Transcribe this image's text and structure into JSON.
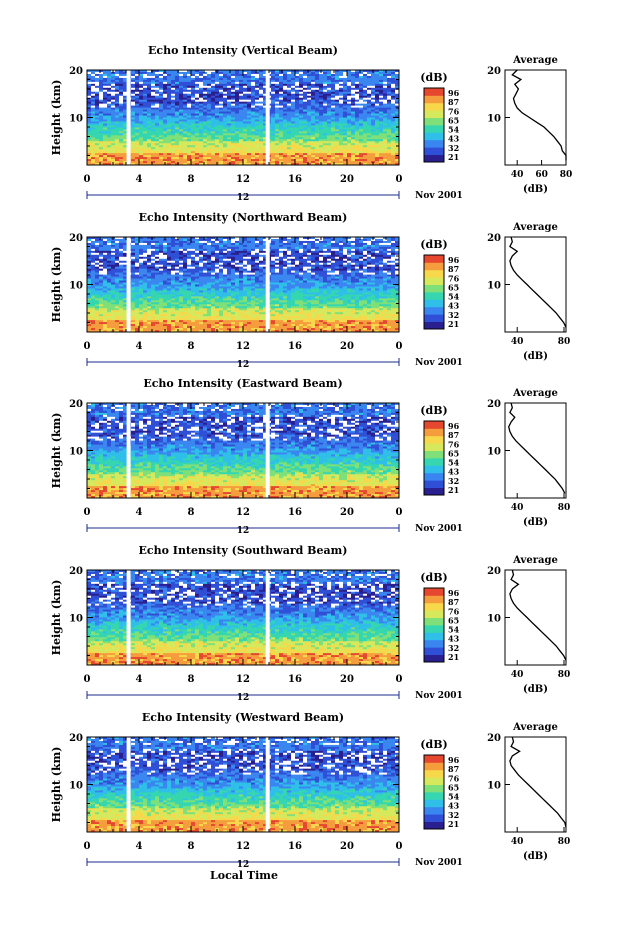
{
  "colors": {
    "colorbar": [
      "#2a1f8f",
      "#2f4fd6",
      "#3a86f0",
      "#2fbfe8",
      "#35d6b0",
      "#7fe07a",
      "#d6e85c",
      "#f7d84a",
      "#f59c3c",
      "#e5472f"
    ],
    "line": "#000000",
    "gap": "#ffffff"
  },
  "shared": {
    "xticks": [
      "0",
      "4",
      "8",
      "12",
      "16",
      "20",
      "0"
    ],
    "date_label": "12",
    "month_label": "Nov 2001",
    "colorbar_unit": "(dB)",
    "colorbar_ticks": [
      "96",
      "87",
      "76",
      "65",
      "54",
      "43",
      "32",
      "21"
    ],
    "yticks": [
      "20",
      "10"
    ],
    "ylabel": "Height (km)",
    "avg_title": "Average",
    "avg_xticks": [
      "40",
      "60",
      "80"
    ],
    "avg_xlabel": "(dB)",
    "avg_yticks": [
      "20",
      "10"
    ],
    "xlabel_bottom": "Local Time"
  },
  "chart_data": [
    {
      "type": "heatmap",
      "title": "Echo Intensity (Vertical Beam)",
      "x": "Local Time (h)",
      "xlim": [
        0,
        24
      ],
      "ylim": [
        0,
        20
      ],
      "data_gaps_hours": [
        3.2,
        13.9
      ],
      "clim_dB": [
        21,
        96
      ],
      "avg_profile": {
        "xlim": [
          30,
          80
        ],
        "xticks": [
          40,
          60,
          80
        ],
        "height_km": [
          1,
          2,
          3,
          4,
          5,
          6,
          7,
          8,
          9,
          10,
          11,
          12,
          13,
          14,
          15,
          16,
          17,
          18,
          19,
          20
        ],
        "dB": [
          82,
          80,
          77,
          76,
          73,
          70,
          66,
          62,
          56,
          50,
          44,
          40,
          38,
          37,
          39,
          41,
          38,
          43,
          36,
          40
        ]
      }
    },
    {
      "type": "heatmap",
      "title": "Echo Intensity (Northward Beam)",
      "x": "Local Time (h)",
      "xlim": [
        0,
        24
      ],
      "ylim": [
        0,
        20
      ],
      "data_gaps_hours": [
        3.2,
        13.9
      ],
      "clim_dB": [
        21,
        96
      ],
      "avg_profile": {
        "xlim": [
          30,
          80
        ],
        "xticks": [
          40
        ],
        "height_km": [
          1,
          2,
          3,
          4,
          5,
          6,
          7,
          8,
          9,
          10,
          11,
          12,
          13,
          14,
          15,
          16,
          17,
          18,
          19,
          20
        ],
        "dB": [
          80,
          78,
          75,
          72,
          68,
          64,
          60,
          56,
          52,
          48,
          44,
          40,
          37,
          35,
          34,
          36,
          40,
          34,
          36,
          35
        ]
      }
    },
    {
      "type": "heatmap",
      "title": "Echo Intensity (Eastward Beam)",
      "x": "Local Time (h)",
      "xlim": [
        0,
        24
      ],
      "ylim": [
        0,
        20
      ],
      "data_gaps_hours": [
        3.2,
        13.9
      ],
      "clim_dB": [
        21,
        96
      ],
      "avg_profile": {
        "xlim": [
          30,
          80
        ],
        "xticks": [
          40
        ],
        "height_km": [
          1,
          2,
          3,
          4,
          5,
          6,
          7,
          8,
          9,
          10,
          11,
          12,
          13,
          14,
          15,
          16,
          17,
          18,
          19,
          20
        ],
        "dB": [
          79,
          77,
          74,
          71,
          67,
          63,
          59,
          55,
          51,
          47,
          43,
          39,
          36,
          34,
          33,
          35,
          38,
          34,
          36,
          35
        ]
      }
    },
    {
      "type": "heatmap",
      "title": "Echo Intensity (Southward Beam)",
      "x": "Local Time (h)",
      "xlim": [
        0,
        24
      ],
      "ylim": [
        0,
        20
      ],
      "data_gaps_hours": [
        3.2,
        13.9
      ],
      "clim_dB": [
        21,
        96
      ],
      "avg_profile": {
        "xlim": [
          30,
          80
        ],
        "xticks": [
          40
        ],
        "height_km": [
          1,
          2,
          3,
          4,
          5,
          6,
          7,
          8,
          9,
          10,
          11,
          12,
          13,
          14,
          15,
          16,
          17,
          18,
          19,
          20
        ],
        "dB": [
          80,
          78,
          75,
          72,
          68,
          64,
          60,
          56,
          52,
          48,
          44,
          40,
          37,
          35,
          34,
          36,
          41,
          35,
          37,
          36
        ]
      }
    },
    {
      "type": "heatmap",
      "title": "Echo Intensity (Westward Beam)",
      "x": "Local Time (h)",
      "xlim": [
        0,
        24
      ],
      "ylim": [
        0,
        20
      ],
      "data_gaps_hours": [
        3.2,
        13.9
      ],
      "clim_dB": [
        21,
        96
      ],
      "avg_profile": {
        "xlim": [
          30,
          80
        ],
        "xticks": [
          40
        ],
        "height_km": [
          1,
          2,
          3,
          4,
          5,
          6,
          7,
          8,
          9,
          10,
          11,
          12,
          13,
          14,
          15,
          16,
          17,
          18,
          19,
          20
        ],
        "dB": [
          80,
          79,
          76,
          73,
          69,
          65,
          61,
          57,
          53,
          49,
          45,
          41,
          38,
          35,
          34,
          36,
          42,
          35,
          37,
          36
        ]
      }
    }
  ]
}
